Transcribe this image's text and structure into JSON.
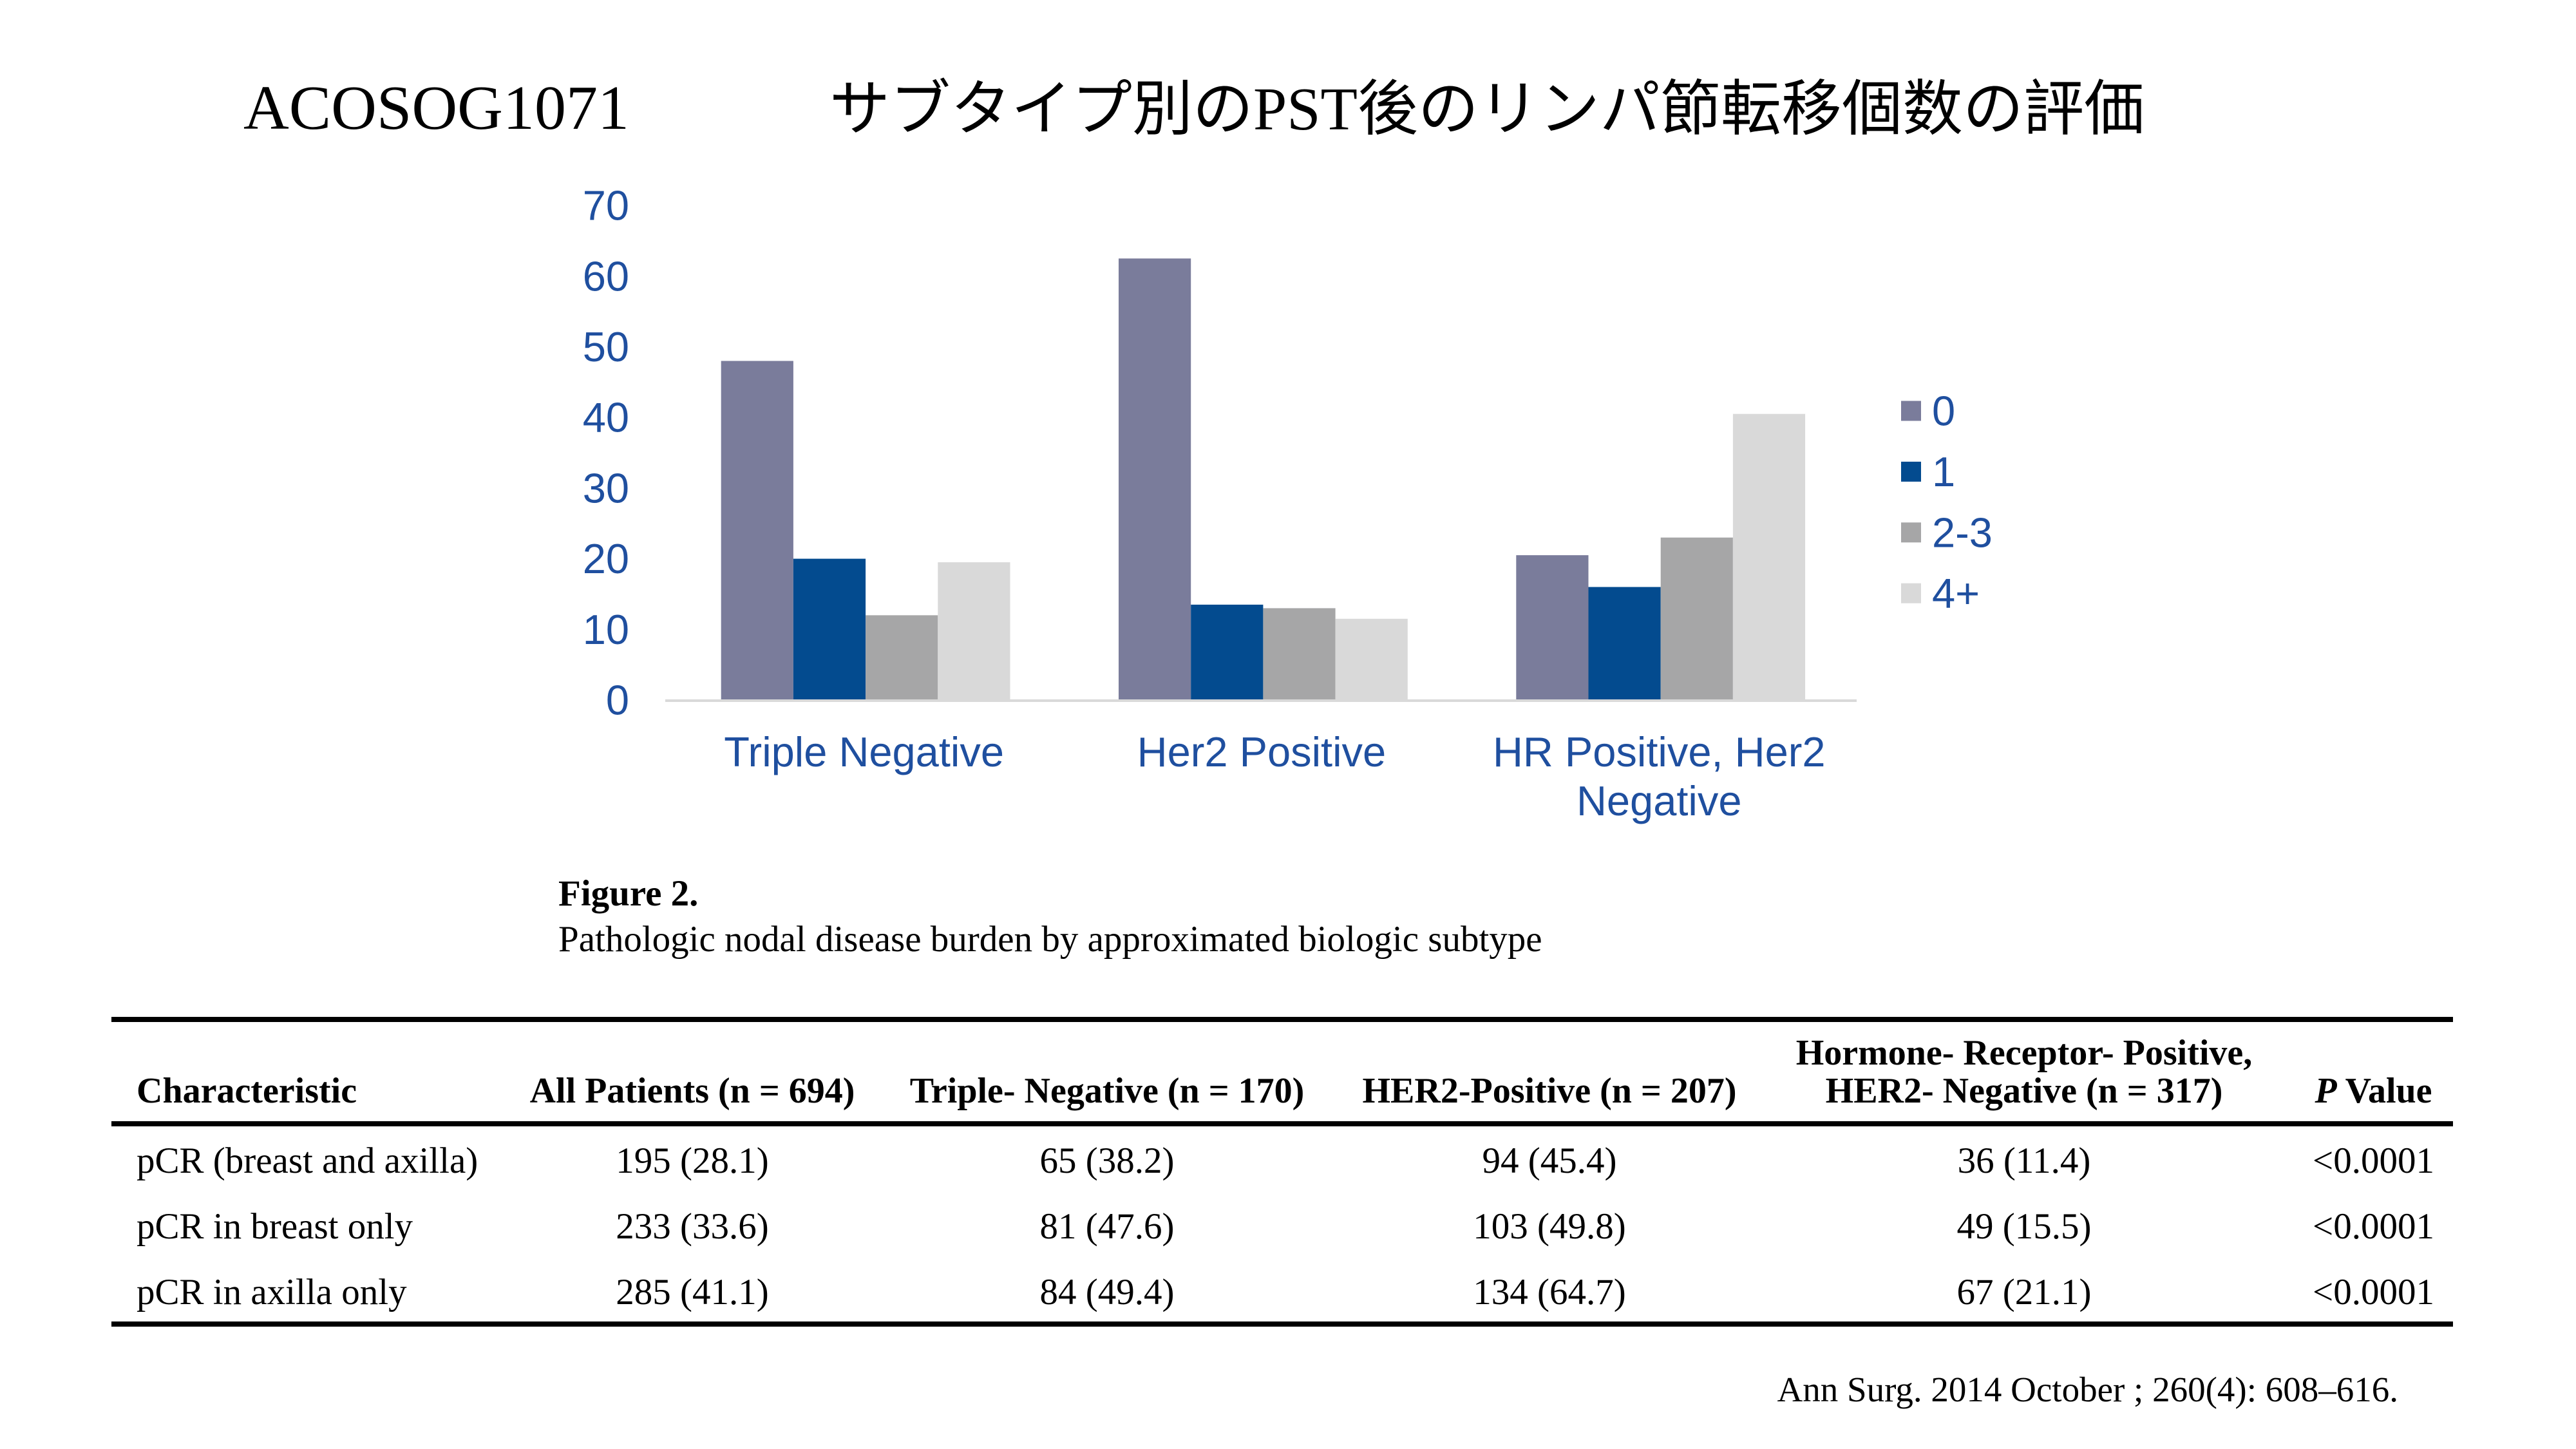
{
  "slide": {
    "trial_name": "ACOSOG1071",
    "title": "サブタイプ別のPST後のリンパ節転移個数の評価"
  },
  "chart_data": {
    "type": "bar",
    "title": "",
    "xlabel": "",
    "ylabel": "",
    "categories": [
      "Triple Negative",
      "Her2 Positive",
      "HR Positive, Her2 Negative"
    ],
    "series": [
      {
        "name": "0",
        "values": [
          48,
          62.5,
          20.5
        ],
        "color": "#7a7c9b"
      },
      {
        "name": "1",
        "values": [
          20,
          13.5,
          16
        ],
        "color": "#034b8f"
      },
      {
        "name": "2-3",
        "values": [
          12,
          13,
          23
        ],
        "color": "#a6a6a7"
      },
      {
        "name": "4+",
        "values": [
          19.5,
          11.5,
          40.5
        ],
        "color": "#d9d9d9"
      }
    ],
    "ylim": [
      0,
      70
    ],
    "yticks": [
      0,
      10,
      20,
      30,
      40,
      50,
      60,
      70
    ],
    "grid": false,
    "legend_position": "right",
    "text_color": "#1f4f9f"
  },
  "figure": {
    "label": "Figure 2.",
    "caption": "Pathologic nodal disease burden by approximated biologic subtype"
  },
  "table": {
    "headers": [
      "Characteristic",
      "All Patients (n = 694)",
      "Triple- Negative (n = 170)",
      "HER2-Positive (n = 207)",
      "Hormone- Receptor- Positive, HER2- Negative (n = 317)",
      {
        "italic": "P",
        "text": "Value"
      }
    ],
    "rows": [
      [
        "pCR (breast and axilla)",
        "195 (28.1)",
        "65 (38.2)",
        "94 (45.4)",
        "36 (11.4)",
        "<0.0001"
      ],
      [
        "pCR in breast only",
        "233 (33.6)",
        "81 (47.6)",
        "103 (49.8)",
        "49 (15.5)",
        "<0.0001"
      ],
      [
        "pCR in axilla only",
        "285 (41.1)",
        "84 (49.4)",
        "134 (64.7)",
        "67 (21.1)",
        "<0.0001"
      ]
    ]
  },
  "citation": "Ann Surg. 2014 October ; 260(4): 608–616."
}
